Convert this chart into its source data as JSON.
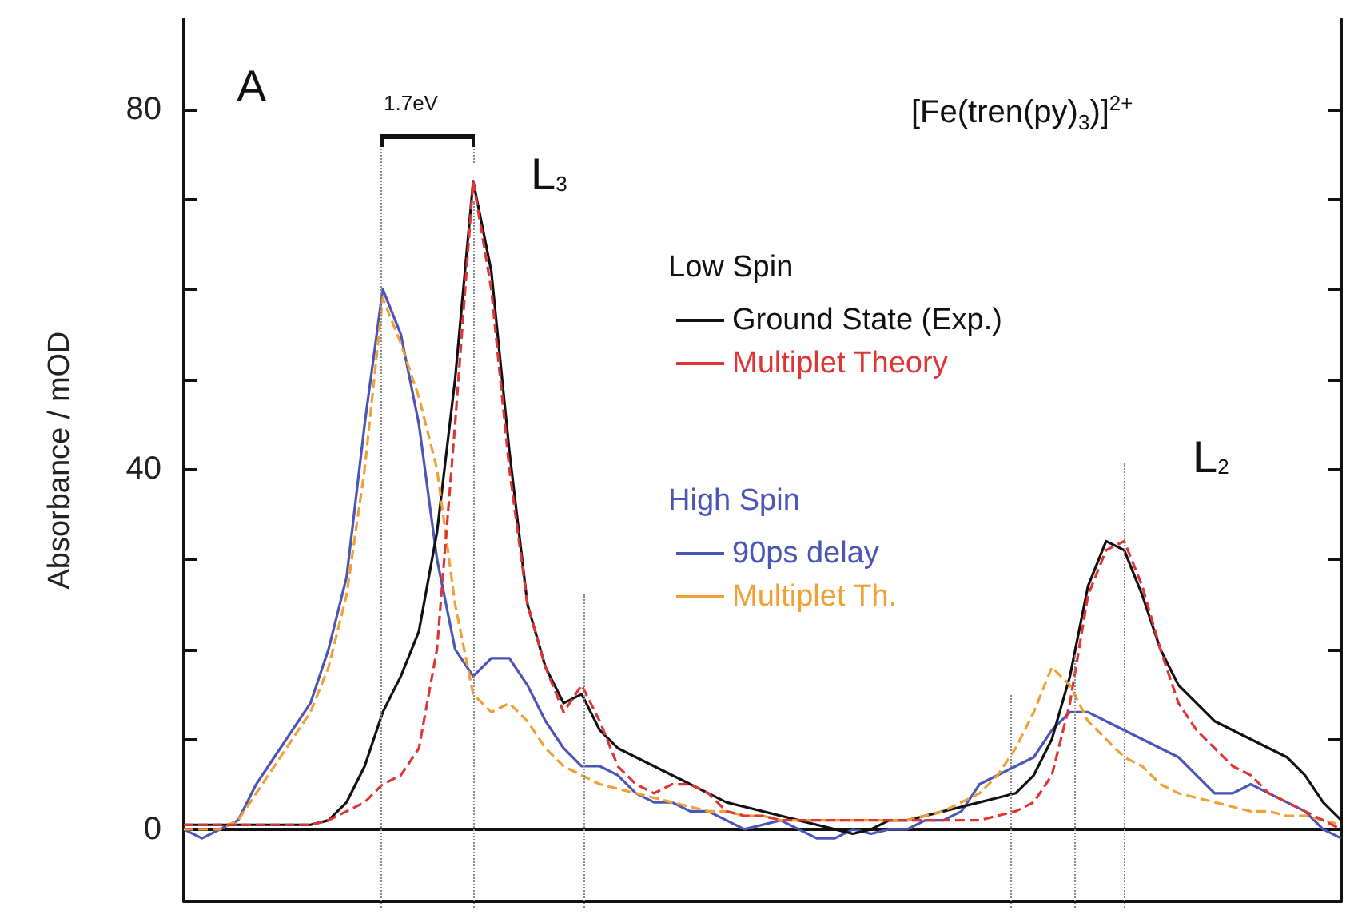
{
  "chart_data": {
    "type": "line",
    "ylabel": "Absorbance / mOD",
    "categories": [
      null,
      null,
      null,
      null,
      null,
      null,
      null,
      null,
      null,
      null,
      null,
      null,
      null,
      null,
      null,
      null,
      null,
      null,
      null,
      null,
      null,
      null,
      null,
      null,
      null,
      null,
      null,
      null,
      null,
      null,
      null,
      null,
      null,
      null,
      null,
      null,
      null,
      null,
      null,
      null,
      null,
      null,
      null,
      null,
      null,
      null,
      null,
      null,
      null,
      null,
      null,
      null,
      null,
      null,
      null,
      null,
      null,
      null,
      null,
      null,
      null,
      null,
      null,
      null,
      null
    ],
    "series": [
      {
        "name": "Ground State (Exp.)",
        "color": "#111111",
        "line_style": "solid",
        "values": [
          0.5,
          0.5,
          0.5,
          0.5,
          0.5,
          0.5,
          0.5,
          0.5,
          1,
          3,
          7,
          13,
          17,
          22,
          33,
          50,
          72,
          62,
          42,
          25,
          18,
          14,
          15,
          11,
          9,
          8,
          7,
          6,
          5,
          4,
          3,
          2.5,
          2,
          1.5,
          1,
          0.5,
          0,
          -0.5,
          0,
          1,
          1,
          1.5,
          2,
          2.5,
          3,
          3.5,
          4,
          6,
          10,
          17,
          27,
          32,
          31,
          26,
          20,
          16,
          14,
          12,
          11,
          10,
          9,
          8,
          6,
          3,
          1
        ]
      },
      {
        "name": "Multiplet Theory",
        "color": "#e03535",
        "line_style": "dashed",
        "values": [
          0.5,
          0.5,
          0.5,
          0.5,
          0.5,
          0.5,
          0.5,
          0.5,
          1,
          2,
          3,
          5,
          6,
          9,
          20,
          45,
          72,
          60,
          40,
          25,
          18,
          13,
          16,
          12,
          7,
          5,
          4,
          5,
          5,
          4,
          2,
          1.5,
          1.5,
          1,
          1,
          1,
          1,
          1,
          1,
          1,
          1,
          1,
          1,
          1,
          1,
          1.5,
          2,
          3,
          6,
          14,
          26,
          31,
          32,
          27,
          20,
          14,
          11,
          9,
          7,
          6,
          4,
          3,
          2,
          1,
          0
        ]
      },
      {
        "name": "90ps delay",
        "color": "#4a55b5",
        "line_style": "solid",
        "values": [
          0,
          -1,
          0,
          1,
          5,
          8,
          11,
          14,
          20,
          28,
          45,
          60,
          55,
          45,
          30,
          20,
          17,
          19,
          19,
          16,
          12,
          9,
          7,
          7,
          6,
          4,
          3,
          3,
          2,
          2,
          1,
          0,
          0.5,
          1,
          0,
          -1,
          -1,
          0,
          -0.5,
          0,
          0,
          1,
          1,
          2,
          5,
          6,
          7,
          8,
          11,
          13,
          13,
          12,
          11,
          10,
          9,
          8,
          6,
          4,
          4,
          5,
          4,
          3,
          2,
          0,
          -1
        ]
      },
      {
        "name": "Multiplet Th.",
        "color": "#f0a035",
        "line_style": "dashed",
        "values": [
          0,
          0,
          0,
          1,
          4,
          7,
          10,
          13,
          18,
          26,
          40,
          59,
          54,
          48,
          40,
          25,
          15,
          13,
          14,
          12,
          9,
          7,
          6,
          5,
          4.5,
          4,
          3.5,
          3,
          2.5,
          2,
          2,
          1.5,
          1.5,
          1,
          1,
          1,
          1,
          1,
          1,
          1,
          1,
          1.5,
          2,
          3,
          4,
          6,
          9,
          13,
          18,
          16,
          12,
          10,
          8,
          7,
          5,
          4,
          3.5,
          3,
          2.5,
          2,
          2,
          1.5,
          1.5,
          1,
          0.5
        ]
      }
    ],
    "ylim": [
      -8,
      90
    ],
    "yticks": [
      0,
      {
        "value": 10,
        "label": null
      },
      {
        "value": 20,
        "label": null
      },
      {
        "value": 30,
        "label": null
      },
      40,
      {
        "value": 50,
        "label": null
      },
      {
        "value": 60,
        "label": null
      },
      {
        "value": 70,
        "label": null
      },
      80
    ],
    "annotations": [
      "A",
      "1.7eV",
      "[Fe(tren(py)$_{3}$)]$^{2+}$",
      "L$_{3}$",
      "L$_{2}$",
      "Low Spin",
      "High Spin"
    ],
    "legend": "top right",
    "marker": "none",
    "grid": false
  }
}
